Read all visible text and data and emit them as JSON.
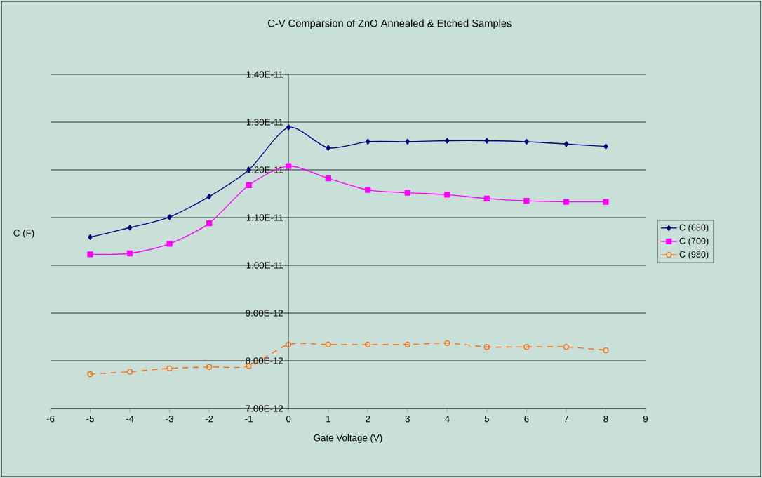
{
  "chart_data": {
    "type": "line",
    "title": "C-V Comparsion of ZnO Annealed & Etched Samples",
    "xlabel": "Gate Voltage (V)",
    "ylabel": "C (F)",
    "x": [
      -5,
      -4,
      -3,
      -2,
      -1,
      0,
      1,
      2,
      3,
      4,
      5,
      6,
      7,
      8
    ],
    "xlim": [
      -6,
      9
    ],
    "xticks": [
      -6,
      -5,
      -4,
      -3,
      -2,
      -1,
      0,
      1,
      2,
      3,
      4,
      5,
      6,
      7,
      8,
      9
    ],
    "ylim": [
      7e-12,
      1.4e-11
    ],
    "yticks": [
      {
        "value": 7e-12,
        "label": "7.00E-12"
      },
      {
        "value": 8e-12,
        "label": "8.00E-12"
      },
      {
        "value": 9e-12,
        "label": "9.00E-12"
      },
      {
        "value": 1e-11,
        "label": "1.00E-11"
      },
      {
        "value": 1.1e-11,
        "label": "1.10E-11"
      },
      {
        "value": 1.2e-11,
        "label": "1.20E-11"
      },
      {
        "value": 1.3e-11,
        "label": "1.30E-11"
      },
      {
        "value": 1.4e-11,
        "label": "1.40E-11"
      }
    ],
    "grid": "y",
    "legend": "right",
    "series": [
      {
        "name": "C (680)",
        "color": "#000080",
        "marker": "diamond",
        "line_style": "solid",
        "values": [
          1.059e-11,
          1.079e-11,
          1.101e-11,
          1.144e-11,
          1.2e-11,
          1.289e-11,
          1.246e-11,
          1.259e-11,
          1.259e-11,
          1.261e-11,
          1.261e-11,
          1.259e-11,
          1.254e-11,
          1.249e-11
        ]
      },
      {
        "name": "C (700)",
        "color": "#ff00ff",
        "marker": "square",
        "line_style": "solid",
        "values": [
          1.023e-11,
          1.025e-11,
          1.045e-11,
          1.088e-11,
          1.168e-11,
          1.208e-11,
          1.182e-11,
          1.158e-11,
          1.152e-11,
          1.148e-11,
          1.14e-11,
          1.135e-11,
          1.133e-11,
          1.133e-11
        ]
      },
      {
        "name": "C (980)",
        "color": "#ff6600",
        "marker": "circle",
        "line_style": "dashed",
        "values": [
          7.72e-12,
          7.77e-12,
          7.84e-12,
          7.87e-12,
          7.89e-12,
          8.34e-12,
          8.34e-12,
          8.34e-12,
          8.34e-12,
          8.37e-12,
          8.29e-12,
          8.29e-12,
          8.29e-12,
          8.22e-12
        ]
      }
    ]
  }
}
